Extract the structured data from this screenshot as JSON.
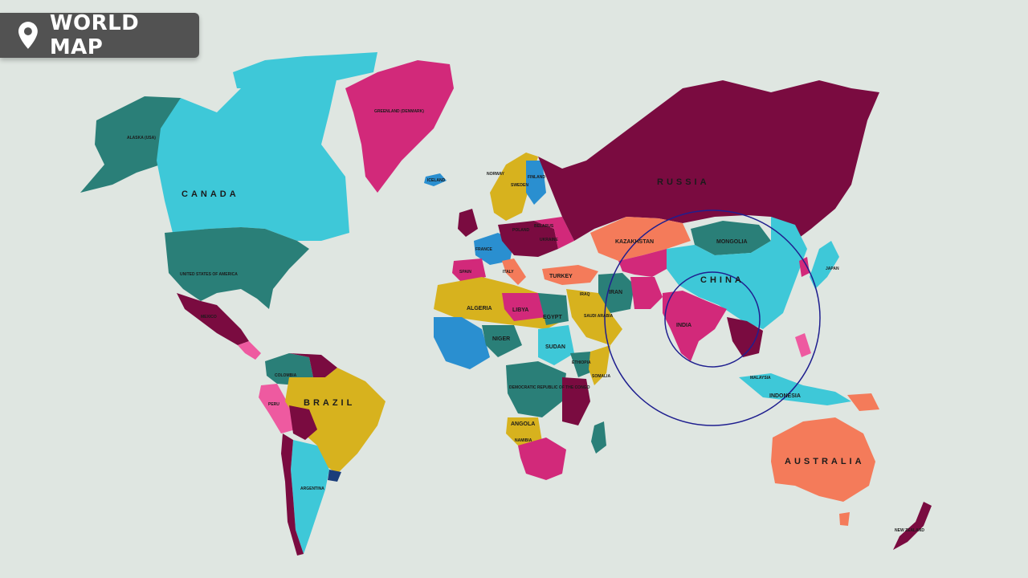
{
  "header": {
    "title": "WORLD MAP",
    "icon": "location-pin-icon"
  },
  "colors": {
    "ocean": "#dfe6e1",
    "badge": "#525252",
    "ring": "#1f1f8f",
    "magenta": "#d2297a",
    "teal": "#2a7f78",
    "cyan": "#3ec8d8",
    "maroon": "#7a0b40",
    "gold": "#d7b21e",
    "orange": "#f47b5a",
    "blue": "#2a8fd0",
    "pink": "#ee5aa0",
    "darkblue": "#1b3d7a"
  },
  "labels": {
    "alaska": "ALASKA (USA)",
    "canada": "CANADA",
    "usa": "UNITED STATES OF AMERICA",
    "greenland": "GREENLAND (DENMARK)",
    "iceland": "ICELAND",
    "russia": "RUSSIA",
    "kazakhstan": "KAZAKHSTAN",
    "mongolia": "MONGOLIA",
    "china": "CHINA",
    "japan": "JAPAN",
    "india": "INDIA",
    "iran": "IRAN",
    "iraq": "IRAQ",
    "turkey": "TURKEY",
    "saudi": "SAUDI ARABIA",
    "egypt": "EGYPT",
    "libya": "LIBYA",
    "algeria": "ALGERIA",
    "niger": "NIGER",
    "sudan": "SUDAN",
    "ethiopia": "ETHIOPIA",
    "somalia": "SOMALIA",
    "drc": "DEMOCRATIC REPUBLIC OF THE CONGO",
    "angola": "ANGOLA",
    "namibia": "NAMIBIA",
    "brazil": "BRAZIL",
    "argentina": "ARGENTINA",
    "peru": "PERU",
    "colombia": "COLOMBIA",
    "mexico": "MEXICO",
    "indonesia": "INDONESIA",
    "malaysia": "MALAYSIA",
    "australia": "AUSTRALIA",
    "newzealand": "NEW ZEALAND",
    "norway": "NORWAY",
    "sweden": "SWEDEN",
    "finland": "FINLAND",
    "poland": "POLAND",
    "belarus": "BELARUS",
    "ukraine": "UKRAINE",
    "france": "FRANCE",
    "italy": "ITALY",
    "spain": "SPAIN"
  }
}
